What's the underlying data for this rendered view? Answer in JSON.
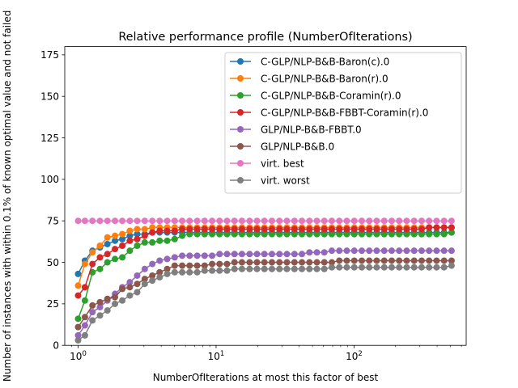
{
  "chart_data": {
    "type": "line",
    "title": "Relative performance profile (NumberOfIterations)",
    "xlabel": "NumberOfIterations at most this factor of best",
    "ylabel": "Number of instances with within 0.1% of known optimal value and not failed",
    "xscale": "log",
    "xlim": [
      0.8,
      650
    ],
    "ylim": [
      0,
      180
    ],
    "yticks": [
      0,
      25,
      50,
      75,
      100,
      125,
      150,
      175
    ],
    "xticks": [
      {
        "value": 1,
        "base": "10",
        "exp": "0"
      },
      {
        "value": 10,
        "base": "10",
        "exp": "1"
      },
      {
        "value": 100,
        "base": "10",
        "exp": "2"
      }
    ],
    "legend_position": "top-right",
    "grid": false,
    "x": [
      1,
      1.12,
      1.27,
      1.44,
      1.63,
      1.85,
      2.09,
      2.37,
      2.68,
      3.04,
      3.45,
      3.9,
      4.42,
      5.01,
      5.68,
      6.43,
      7.29,
      8.26,
      9.36,
      10.6,
      12.0,
      13.6,
      15.4,
      17.5,
      19.8,
      22.4,
      25.4,
      28.8,
      32.6,
      37.0,
      41.9,
      47.5,
      53.8,
      60.9,
      69.0,
      78.2,
      88.6,
      100.4,
      113.8,
      128.9,
      146,
      165.5,
      187.5,
      212.4,
      240.7,
      272.7,
      309,
      350,
      396.6,
      449.4,
      509
    ],
    "series": [
      {
        "name": "C-GLP/NLP-B&B-Baron(c).0",
        "color": "#1f77b4",
        "start": 43,
        "end": 68
      },
      {
        "name": "C-GLP/NLP-B&B-Baron(r).0",
        "color": "#ff7f0e",
        "start": 36,
        "end": 71
      },
      {
        "name": "C-GLP/NLP-B&B-Coramin(r).0",
        "color": "#2ca02c",
        "start": 16,
        "end": 68
      },
      {
        "name": "C-GLP/NLP-B&B-FBBT-Coramin(r).0",
        "color": "#d62728",
        "start": 30,
        "end": 71
      },
      {
        "name": "GLP/NLP-B&B-FBBT.0",
        "color": "#9467bd",
        "start": 6,
        "end": 57
      },
      {
        "name": "GLP/NLP-B&B.0",
        "color": "#8c564b",
        "start": 11,
        "end": 51
      },
      {
        "name": "virt. best",
        "color": "#e377c2",
        "start": 75,
        "end": 75
      },
      {
        "name": "virt. worst",
        "color": "#7f7f7f",
        "start": 3,
        "end": 48
      }
    ],
    "values": [
      [
        43,
        51,
        57,
        59,
        61,
        63,
        64,
        66,
        67,
        67,
        68,
        68,
        68,
        68,
        68,
        68,
        68,
        68,
        68,
        68,
        68,
        68,
        68,
        68,
        68,
        68,
        68,
        68,
        68,
        68,
        68,
        68,
        68,
        68,
        68,
        68,
        68,
        68,
        68,
        68,
        68,
        68,
        68,
        68,
        68,
        68,
        68,
        68,
        68,
        68,
        68
      ],
      [
        36,
        49,
        56,
        60,
        65,
        66,
        67,
        69,
        70,
        70,
        71,
        71,
        71,
        71,
        71,
        71,
        71,
        71,
        71,
        71,
        71,
        71,
        71,
        71,
        71,
        71,
        71,
        71,
        71,
        71,
        71,
        71,
        71,
        71,
        71,
        71,
        71,
        71,
        71,
        71,
        71,
        71,
        71,
        71,
        71,
        71,
        71,
        71,
        71,
        71,
        71
      ],
      [
        16,
        27,
        44,
        46,
        50,
        52,
        53,
        57,
        60,
        62,
        62,
        63,
        63,
        64,
        66,
        67,
        67,
        67,
        67,
        67,
        67,
        67,
        67,
        67,
        67,
        67,
        67,
        67,
        67,
        67,
        67,
        67,
        67,
        67,
        67,
        67,
        67,
        67,
        67,
        67,
        67,
        67,
        67,
        67,
        67,
        67,
        67,
        67,
        67,
        67,
        68
      ],
      [
        30,
        35,
        49,
        53,
        55,
        58,
        60,
        63,
        64,
        66,
        68,
        69,
        69,
        69,
        70,
        70,
        70,
        70,
        70,
        70,
        70,
        70,
        70,
        70,
        70,
        70,
        70,
        70,
        70,
        70,
        70,
        70,
        70,
        70,
        70,
        70,
        70,
        70,
        70,
        70,
        70,
        70,
        70,
        70,
        70,
        70,
        70,
        71,
        71,
        71,
        71
      ],
      [
        6,
        12,
        20,
        23,
        27,
        31,
        35,
        38,
        42,
        46,
        49,
        51,
        52,
        53,
        54,
        54,
        54,
        54,
        54,
        55,
        55,
        55,
        55,
        55,
        55,
        55,
        55,
        55,
        55,
        55,
        55,
        56,
        56,
        56,
        57,
        57,
        57,
        57,
        57,
        57,
        57,
        57,
        57,
        57,
        57,
        57,
        57,
        57,
        57,
        57,
        57
      ],
      [
        11,
        17,
        24,
        26,
        28,
        29,
        34,
        35,
        37,
        40,
        42,
        44,
        46,
        48,
        48,
        48,
        48,
        48,
        49,
        49,
        49,
        50,
        50,
        50,
        50,
        50,
        50,
        50,
        50,
        50,
        50,
        50,
        50,
        50,
        50,
        51,
        51,
        51,
        51,
        51,
        51,
        51,
        51,
        51,
        51,
        51,
        51,
        51,
        51,
        51,
        51
      ],
      [
        75,
        75,
        75,
        75,
        75,
        75,
        75,
        75,
        75,
        75,
        75,
        75,
        75,
        75,
        75,
        75,
        75,
        75,
        75,
        75,
        75,
        75,
        75,
        75,
        75,
        75,
        75,
        75,
        75,
        75,
        75,
        75,
        75,
        75,
        75,
        75,
        75,
        75,
        75,
        75,
        75,
        75,
        75,
        75,
        75,
        75,
        75,
        75,
        75,
        75,
        75
      ],
      [
        3,
        6,
        15,
        18,
        21,
        25,
        27,
        30,
        32,
        37,
        39,
        41,
        43,
        44,
        44,
        44,
        44,
        45,
        45,
        45,
        45,
        46,
        46,
        46,
        46,
        46,
        46,
        46,
        46,
        46,
        46,
        46,
        46,
        46,
        47,
        47,
        47,
        47,
        47,
        47,
        47,
        47,
        47,
        47,
        47,
        47,
        47,
        47,
        47,
        47,
        48
      ]
    ]
  }
}
